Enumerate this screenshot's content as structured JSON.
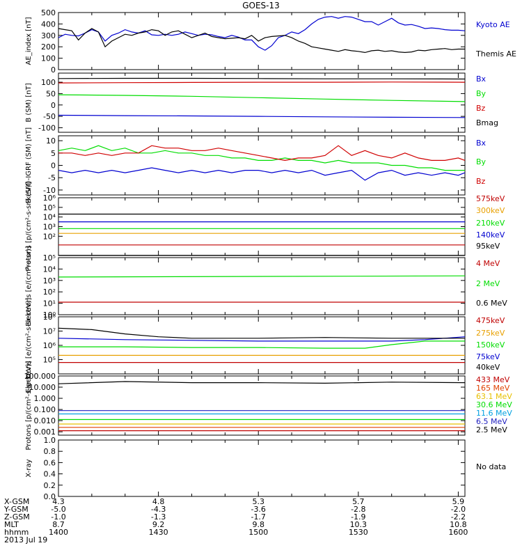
{
  "chart_data": [
    {
      "type": "line",
      "title": "GOES-13",
      "ylabel": "AE_index [nT]",
      "ylim": [
        0,
        500
      ],
      "yticks": [
        "0",
        "100",
        "200",
        "300",
        "400",
        "500"
      ],
      "yscale": "linear",
      "series": [
        {
          "name": "Kyoto AE",
          "color": "#0000d0",
          "x": [
            0,
            1,
            2,
            3,
            4,
            5,
            6,
            7,
            8,
            9,
            10,
            11,
            12,
            13,
            14,
            15,
            16,
            17,
            18,
            19,
            20,
            21,
            22,
            23,
            24,
            25,
            26,
            27,
            28,
            29,
            30,
            31,
            32,
            33,
            34,
            35,
            36,
            37,
            38,
            39,
            40,
            41,
            42,
            43,
            44,
            45,
            46,
            47,
            48,
            49,
            50,
            51,
            52,
            53,
            54,
            55,
            56,
            57,
            58,
            59,
            60,
            61
          ],
          "values": [
            280,
            310,
            300,
            295,
            320,
            350,
            330,
            250,
            300,
            320,
            350,
            330,
            320,
            340,
            305,
            300,
            310,
            300,
            310,
            330,
            315,
            300,
            310,
            305,
            290,
            280,
            300,
            285,
            260,
            260,
            200,
            170,
            210,
            280,
            300,
            330,
            315,
            350,
            400,
            440,
            460,
            465,
            450,
            465,
            460,
            440,
            420,
            420,
            390,
            420,
            450,
            410,
            390,
            395,
            380,
            360,
            365,
            360,
            350,
            345,
            345,
            340
          ]
        },
        {
          "name": "Themis AE",
          "color": "#000000",
          "x": [
            0,
            1,
            2,
            3,
            4,
            5,
            6,
            7,
            8,
            9,
            10,
            11,
            12,
            13,
            14,
            15,
            16,
            17,
            18,
            19,
            20,
            21,
            22,
            23,
            24,
            25,
            26,
            27,
            28,
            29,
            30,
            31,
            32,
            33,
            34,
            35,
            36,
            37,
            38,
            39,
            40,
            41,
            42,
            43,
            44,
            45,
            46,
            47,
            48,
            49,
            50,
            51,
            52,
            53,
            54,
            55,
            56,
            57,
            58,
            59,
            60,
            61
          ],
          "values": [
            360,
            350,
            340,
            260,
            320,
            360,
            330,
            200,
            250,
            280,
            310,
            300,
            320,
            330,
            350,
            340,
            300,
            330,
            340,
            310,
            280,
            300,
            320,
            290,
            280,
            270,
            275,
            280,
            270,
            300,
            250,
            280,
            290,
            295,
            300,
            280,
            250,
            230,
            200,
            190,
            180,
            170,
            160,
            175,
            165,
            160,
            150,
            165,
            170,
            160,
            165,
            155,
            150,
            155,
            170,
            165,
            175,
            180,
            185,
            175,
            180,
            180
          ]
        }
      ]
    },
    {
      "type": "line",
      "ylabel": "B (SM) [nT]",
      "ylim": [
        -120,
        140
      ],
      "yticks": [
        "-100",
        "-50",
        "0",
        "50",
        "100"
      ],
      "yscale": "linear",
      "series": [
        {
          "name": "Bx",
          "color": "#0000d0",
          "x": [
            0,
            10,
            20,
            30,
            40,
            50,
            61
          ],
          "values": [
            -45,
            -47,
            -48,
            -50,
            -52,
            -54,
            -55
          ]
        },
        {
          "name": "By",
          "color": "#00dd00",
          "x": [
            0,
            10,
            20,
            30,
            40,
            50,
            61
          ],
          "values": [
            45,
            42,
            38,
            32,
            26,
            20,
            15
          ]
        },
        {
          "name": "Bz",
          "color": "#d00000",
          "x": [
            0,
            10,
            20,
            30,
            40,
            50,
            61
          ],
          "values": [
            97,
            98,
            99,
            100,
            100,
            101,
            100
          ]
        },
        {
          "name": "Bmag",
          "color": "#000000",
          "x": [
            0,
            10,
            20,
            30,
            40,
            50,
            61
          ],
          "values": [
            116,
            117,
            117,
            116,
            115,
            115,
            114
          ]
        }
      ]
    },
    {
      "type": "line",
      "ylabel": "B (SM)-IGRF (SM) [nT]",
      "ylim": [
        -12,
        12
      ],
      "yticks": [
        "-10",
        "-5",
        "0",
        "5",
        "10"
      ],
      "yscale": "linear",
      "series": [
        {
          "name": "Bx",
          "color": "#0000d0",
          "x": [
            0,
            2,
            4,
            6,
            8,
            10,
            12,
            14,
            16,
            18,
            20,
            22,
            24,
            26,
            28,
            30,
            32,
            34,
            36,
            38,
            40,
            42,
            44,
            46,
            48,
            50,
            52,
            54,
            56,
            58,
            60,
            61
          ],
          "values": [
            -2,
            -3,
            -2,
            -3,
            -2,
            -3,
            -2,
            -1,
            -2,
            -3,
            -2,
            -3,
            -2,
            -3,
            -2,
            -2,
            -3,
            -2,
            -3,
            -2,
            -4,
            -3,
            -2,
            -6,
            -3,
            -2,
            -4,
            -3,
            -4,
            -3,
            -4,
            -3
          ]
        },
        {
          "name": "By",
          "color": "#00dd00",
          "x": [
            0,
            2,
            4,
            6,
            8,
            10,
            12,
            14,
            16,
            18,
            20,
            22,
            24,
            26,
            28,
            30,
            32,
            34,
            36,
            38,
            40,
            42,
            44,
            46,
            48,
            50,
            52,
            54,
            56,
            58,
            60,
            61
          ],
          "values": [
            6,
            7,
            6,
            8,
            6,
            7,
            5,
            5,
            6,
            5,
            5,
            4,
            4,
            3,
            3,
            2,
            2,
            3,
            2,
            2,
            1,
            2,
            1,
            1,
            1,
            0,
            0,
            -1,
            -1,
            -2,
            -2,
            -2
          ]
        },
        {
          "name": "Bz",
          "color": "#d00000",
          "x": [
            0,
            2,
            4,
            6,
            8,
            10,
            12,
            14,
            16,
            18,
            20,
            22,
            24,
            26,
            28,
            30,
            32,
            34,
            36,
            38,
            40,
            42,
            44,
            46,
            48,
            50,
            52,
            54,
            56,
            58,
            60,
            61
          ],
          "values": [
            5,
            5,
            4,
            5,
            4,
            5,
            5,
            8,
            7,
            7,
            6,
            6,
            7,
            6,
            5,
            4,
            3,
            2,
            3,
            3,
            4,
            8,
            4,
            6,
            4,
            3,
            5,
            3,
            2,
            2,
            3,
            2
          ]
        }
      ]
    },
    {
      "type": "line",
      "ylabel": "Protons [p/(cm²-s-sr-keV)]",
      "ylim": [
        1,
        7
      ],
      "yticks": [
        "10²",
        "10³",
        "10⁴",
        "10⁵",
        "10⁶"
      ],
      "yscale": "log",
      "series": [
        {
          "name": "575keV",
          "color": "#c00000",
          "x": [
            0,
            61
          ],
          "values": [
            2.1,
            2.1
          ]
        },
        {
          "name": "300keV",
          "color": "#e8a000",
          "x": [
            0,
            61
          ],
          "values": [
            3.3,
            3.3
          ]
        },
        {
          "name": "210keV",
          "color": "#00dd00",
          "x": [
            0,
            61
          ],
          "values": [
            3.8,
            3.8
          ]
        },
        {
          "name": "140keV",
          "color": "#0000d0",
          "x": [
            0,
            61
          ],
          "values": [
            4.5,
            4.5
          ]
        },
        {
          "name": "95keV",
          "color": "#000000",
          "x": [
            0,
            61
          ],
          "values": [
            5.3,
            5.3
          ]
        }
      ]
    },
    {
      "type": "line",
      "ylabel": "Electrons [e/(cm²-s-sr)]",
      "ylim": [
        0,
        5
      ],
      "yticks": [
        "10⁰",
        "10¹",
        "10²",
        "10³",
        "10⁴",
        "10⁵"
      ],
      "yscale": "log",
      "series": [
        {
          "name": "4 MeV",
          "color": "#c00000",
          "x": [
            0,
            61
          ],
          "values": [
            1.1,
            1.1
          ]
        },
        {
          "name": "2 MeV",
          "color": "#00dd00",
          "x": [
            0,
            61
          ],
          "values": [
            3.3,
            3.4
          ]
        },
        {
          "name": "0.6 MeV",
          "color": "#000000",
          "x": [
            0,
            61
          ],
          "values": [
            5.2,
            5.2
          ]
        }
      ]
    },
    {
      "type": "line",
      "ylabel": "Electrons [e/(cm²-s-sr-keV)]",
      "ylim": [
        4,
        8
      ],
      "yticks": [
        "10⁵",
        "10⁶",
        "10⁷",
        "10⁸"
      ],
      "yscale": "log",
      "series": [
        {
          "name": "475keV",
          "color": "#c00000",
          "x": [
            0,
            61
          ],
          "values": [
            4.8,
            4.8
          ]
        },
        {
          "name": "275keV",
          "color": "#e8a000",
          "x": [
            0,
            61
          ],
          "values": [
            5.3,
            5.3
          ]
        },
        {
          "name": "150keV",
          "color": "#00dd00",
          "x": [
            0,
            10,
            20,
            30,
            40,
            46,
            50,
            55,
            61
          ],
          "values": [
            5.9,
            5.9,
            5.85,
            5.85,
            5.8,
            5.8,
            6.05,
            6.3,
            6.3
          ]
        },
        {
          "name": "75keV",
          "color": "#0000d0",
          "x": [
            0,
            10,
            20,
            30,
            40,
            50,
            55,
            61
          ],
          "values": [
            6.5,
            6.4,
            6.35,
            6.3,
            6.3,
            6.3,
            6.4,
            6.6
          ]
        },
        {
          "name": "40keV",
          "color": "#000000",
          "x": [
            0,
            5,
            10,
            15,
            20,
            30,
            40,
            50,
            55,
            61
          ],
          "values": [
            7.2,
            7.1,
            6.8,
            6.6,
            6.5,
            6.5,
            6.55,
            6.5,
            6.5,
            6.5
          ]
        }
      ]
    },
    {
      "type": "line",
      "ylabel": "Protons [p/(cm²-s-sr-keV)]",
      "ylim": [
        -3.3,
        2
      ],
      "yticks": [
        "0.001",
        "0.010",
        "0.100",
        "1.000",
        "10.000",
        "100.000"
      ],
      "yscale": "log",
      "series": [
        {
          "name": "433 MeV",
          "color": "#c00000",
          "x": [
            0,
            61
          ],
          "values": [
            -2.9,
            -2.9
          ]
        },
        {
          "name": "165 MeV",
          "color": "#e04000",
          "x": [
            0,
            61
          ],
          "values": [
            -2.6,
            -2.6
          ]
        },
        {
          "name": "63.1 MeV",
          "color": "#e8c000",
          "x": [
            0,
            61
          ],
          "values": [
            -2.3,
            -2.3
          ]
        },
        {
          "name": "30.6 MeV",
          "color": "#00dd00",
          "x": [
            0,
            61
          ],
          "values": [
            -1.9,
            -1.9
          ]
        },
        {
          "name": "11.6 MeV",
          "color": "#00a0e0",
          "x": [
            0,
            61
          ],
          "values": [
            -1.4,
            -1.4
          ]
        },
        {
          "name": "6.5 MeV",
          "color": "#2020c0",
          "x": [
            0,
            61
          ],
          "values": [
            -1.1,
            -1.1
          ]
        },
        {
          "name": "2.5 MeV",
          "color": "#000000",
          "x": [
            0,
            10,
            20,
            30,
            40,
            50,
            61
          ],
          "values": [
            1.3,
            1.5,
            1.4,
            1.4,
            1.35,
            1.45,
            1.4
          ]
        }
      ]
    },
    {
      "type": "line",
      "ylabel": "X-ray",
      "ylim": [
        0.0,
        1.0
      ],
      "yticks": [
        "0.0",
        "0.2",
        "0.4",
        "0.6",
        "0.8",
        "1.0"
      ],
      "yscale": "linear",
      "note": "No data",
      "series": []
    }
  ],
  "xaxis": {
    "row_labels": [
      "X-GSM",
      "Y-GSM",
      "Z-GSM",
      "MLT",
      "hhmm",
      "2013 Jul 19"
    ],
    "columns": [
      {
        "x": 0,
        "values": [
          "4.3",
          "-5.0",
          "-1.0",
          "8.7",
          "1400"
        ]
      },
      {
        "x": 15,
        "values": [
          "4.8",
          "-4.3",
          "-1.3",
          "9.2",
          "1430"
        ]
      },
      {
        "x": 30,
        "values": [
          "5.3",
          "-3.6",
          "-1.7",
          "9.8",
          "1500"
        ]
      },
      {
        "x": 45,
        "values": [
          "5.7",
          "-2.8",
          "-1.9",
          "10.3",
          "1530"
        ]
      },
      {
        "x": 60,
        "values": [
          "5.9",
          "-2.0",
          "-2.2",
          "10.8",
          "1600"
        ]
      }
    ]
  }
}
